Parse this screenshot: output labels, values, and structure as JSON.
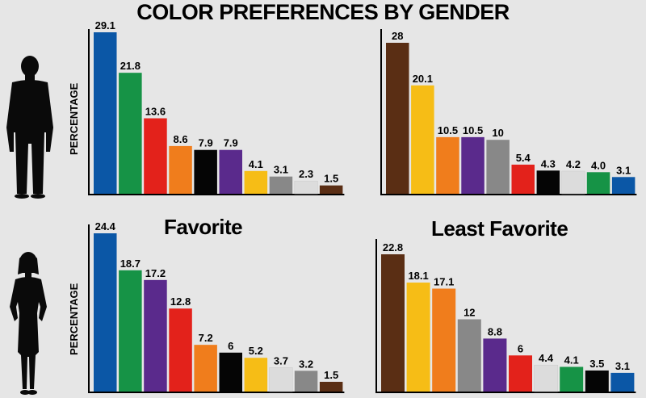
{
  "title": "COLOR PREFERENCES BY GENDER",
  "subtitles": {
    "favorite": "Favorite",
    "least_favorite": "Least Favorite"
  },
  "ylabel": "PERCENTAGE",
  "icons": [
    "man-silhouette-icon",
    "woman-silhouette-icon"
  ],
  "chart_data": [
    {
      "type": "bar",
      "group": "men",
      "panel": "favorite",
      "ylabel": "PERCENTAGE",
      "value_labels": [
        "29.1",
        "21.8",
        "13.6",
        "8.6",
        "7.9",
        "7.9",
        "4.1",
        "3.1",
        "2.3",
        "1.5"
      ],
      "values": [
        29.1,
        21.8,
        13.6,
        8.6,
        7.9,
        7.9,
        4.1,
        3.1,
        2.3,
        1.5
      ],
      "colors": [
        "#0b57a6",
        "#169346",
        "#e3221b",
        "#f07d1c",
        "#050505",
        "#5a2a8c",
        "#f6bd16",
        "#888888",
        "#dcdcdc",
        "#5a2e14"
      ]
    },
    {
      "type": "bar",
      "group": "men",
      "panel": "least_favorite",
      "value_labels": [
        "28",
        "20.1",
        "10.5",
        "10.5",
        "10",
        "5.4",
        "4.3",
        "4.2",
        "4.0",
        "3.1"
      ],
      "values": [
        28,
        20.1,
        10.5,
        10.5,
        10,
        5.4,
        4.3,
        4.2,
        4.0,
        3.1
      ],
      "colors": [
        "#5a2e14",
        "#f6bd16",
        "#f07d1c",
        "#5a2a8c",
        "#888888",
        "#e3221b",
        "#050505",
        "#dcdcdc",
        "#169346",
        "#0b57a6"
      ]
    },
    {
      "type": "bar",
      "group": "women",
      "panel": "favorite",
      "title": "Favorite",
      "ylabel": "PERCENTAGE",
      "value_labels": [
        "24.4",
        "18.7",
        "17.2",
        "12.8",
        "7.2",
        "6",
        "5.2",
        "3.7",
        "3.2",
        "1.5"
      ],
      "values": [
        24.4,
        18.7,
        17.2,
        12.8,
        7.2,
        6,
        5.2,
        3.7,
        3.2,
        1.5
      ],
      "colors": [
        "#0b57a6",
        "#169346",
        "#5a2a8c",
        "#e3221b",
        "#f07d1c",
        "#050505",
        "#f6bd16",
        "#dcdcdc",
        "#888888",
        "#5a2e14"
      ]
    },
    {
      "type": "bar",
      "group": "women",
      "panel": "least_favorite",
      "title": "Least Favorite",
      "value_labels": [
        "22.8",
        "18.1",
        "17.1",
        "12",
        "8.8",
        "6",
        "4.4",
        "4.1",
        "3.5",
        "3.1"
      ],
      "values": [
        22.8,
        18.1,
        17.1,
        12,
        8.8,
        6,
        4.4,
        4.1,
        3.5,
        3.1
      ],
      "colors": [
        "#5a2e14",
        "#f6bd16",
        "#f07d1c",
        "#888888",
        "#5a2a8c",
        "#e3221b",
        "#dcdcdc",
        "#169346",
        "#050505",
        "#0b57a6"
      ]
    }
  ]
}
